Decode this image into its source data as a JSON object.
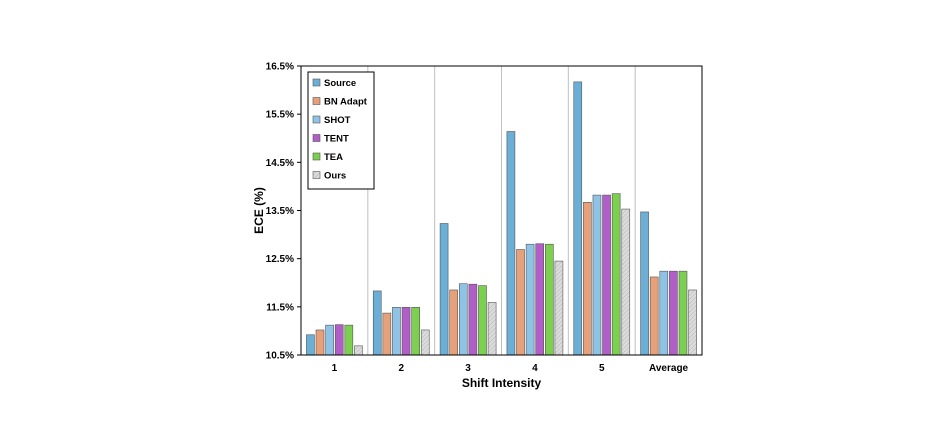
{
  "chart_data": {
    "type": "bar",
    "categories": [
      "1",
      "2",
      "3",
      "4",
      "5",
      "Average"
    ],
    "xlabel": "Shift Intensity",
    "ylabel": "ECE (%)",
    "ylim": [
      10.5,
      16.5
    ],
    "yticks": [
      "10.5%",
      "11.5%",
      "12.5%",
      "13.5%",
      "14.5%",
      "15.5%",
      "16.5%"
    ],
    "ytick_values": [
      10.5,
      11.5,
      12.5,
      13.5,
      14.5,
      15.5,
      16.5
    ],
    "grid": "vertical separators between categories",
    "legend_position": "top-left",
    "series": [
      {
        "name": "Source",
        "color": "#6baed6",
        "values": [
          10.92,
          11.83,
          13.23,
          15.14,
          16.17,
          13.47
        ]
      },
      {
        "name": "BN Adapt",
        "color": "#e6a07a",
        "values": [
          11.02,
          11.37,
          11.85,
          12.69,
          13.67,
          12.12
        ]
      },
      {
        "name": "SHOT",
        "color": "#8fc3e6",
        "values": [
          11.12,
          11.49,
          11.98,
          12.8,
          13.82,
          12.24
        ]
      },
      {
        "name": "TENT",
        "color": "#b25ec9",
        "values": [
          11.13,
          11.49,
          11.97,
          12.81,
          13.82,
          12.24
        ]
      },
      {
        "name": "TEA",
        "color": "#7ccf4f",
        "values": [
          11.12,
          11.49,
          11.94,
          12.8,
          13.85,
          12.24
        ]
      },
      {
        "name": "Ours",
        "color": "#d4d4d4",
        "values": [
          10.69,
          11.02,
          11.59,
          12.45,
          13.53,
          11.85
        ]
      }
    ]
  }
}
